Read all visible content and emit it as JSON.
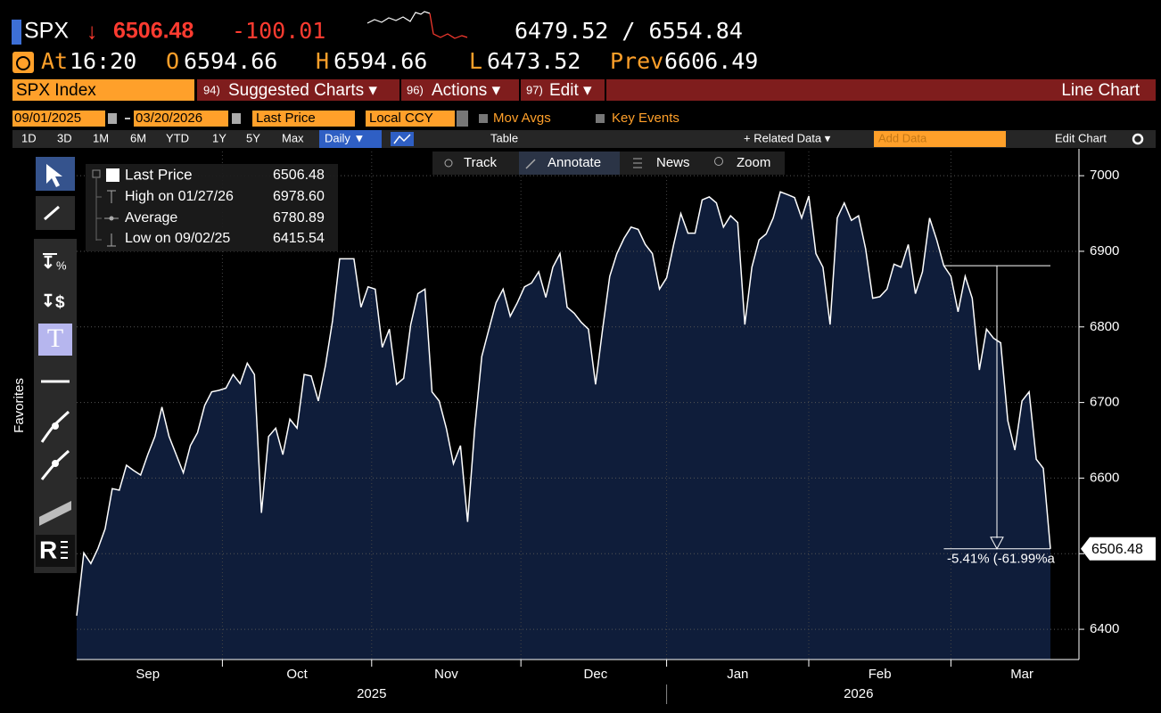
{
  "header": {
    "ticker": "SPX",
    "direction": "↓",
    "last": "6506.48",
    "change": "-100.01",
    "range": "6479.52 / 6554.84",
    "at_label": "At",
    "time": "16:20",
    "open_label": "O",
    "open": "6594.66",
    "high_label": "H",
    "high": "6594.66",
    "low_label": "L",
    "low": "6473.52",
    "prev_label": "Prev",
    "prev": "6606.49"
  },
  "menu": {
    "security": "SPX Index",
    "items": [
      {
        "number": "94)",
        "label": "Suggested Charts ▾"
      },
      {
        "number": "96)",
        "label": "Actions ▾"
      },
      {
        "number": "97)",
        "label": "Edit ▾"
      }
    ],
    "chart_type": "Line Chart"
  },
  "settings": {
    "start_date": "09/01/2025",
    "end_date": "03/20/2026",
    "field": "Last Price",
    "currency": "Local CCY",
    "mov_avgs": "Mov Avgs",
    "key_events": "Key Events"
  },
  "periods": [
    "1D",
    "3D",
    "1M",
    "6M",
    "YTD",
    "1Y",
    "5Y",
    "Max"
  ],
  "frequency": "Daily ▼",
  "table": "Table",
  "related": "+ Related Data ▾",
  "add_data": "Add Data",
  "edit_chart": "Edit Chart",
  "tools": [
    "Track",
    "Annotate",
    "News",
    "Zoom"
  ],
  "sidebar": {
    "favorites": "Favorites",
    "icons": [
      "%",
      "$",
      "T",
      "R"
    ]
  },
  "legend": [
    {
      "label": "Last Price",
      "value": "6506.48"
    },
    {
      "label": "High on 01/27/26",
      "value": "6978.60"
    },
    {
      "label": "Average",
      "value": "6780.89"
    },
    {
      "label": "Low on 09/02/25",
      "value": "6415.54"
    }
  ],
  "chart_data": {
    "type": "area",
    "series": [
      {
        "name": "Last Price",
        "color": "#ffffff",
        "area_color": "#0f1d3a",
        "values": [
          6418,
          6501,
          6487,
          6507,
          6533,
          6586,
          6584,
          6617,
          6610,
          6604,
          6631,
          6655,
          6694,
          6655,
          6631,
          6607,
          6643,
          6660,
          6696,
          6714,
          6716,
          6719,
          6737,
          6725,
          6752,
          6737,
          6554,
          6655,
          6666,
          6631,
          6678,
          6666,
          6737,
          6735,
          6702,
          6749,
          6808,
          6890,
          6890,
          6890,
          6826,
          6853,
          6850,
          6773,
          6797,
          6724,
          6732,
          6803,
          6844,
          6850,
          6714,
          6702,
          6666,
          6619,
          6643,
          6542,
          6666,
          6761,
          6797,
          6832,
          6850,
          6814,
          6832,
          6853,
          6858,
          6873,
          6839,
          6879,
          6897,
          6826,
          6818,
          6806,
          6797,
          6724,
          6797,
          6867,
          6897,
          6917,
          6932,
          6929,
          6909,
          6897,
          6850,
          6865,
          6909,
          6950,
          6924,
          6924,
          6968,
          6972,
          6964,
          6932,
          6947,
          6938,
          6803,
          6879,
          6915,
          6923,
          6944,
          6978.6,
          6975,
          6971,
          6944,
          6973,
          6897,
          6879,
          6803,
          6944,
          6964,
          6941,
          6947,
          6903,
          6838,
          6840,
          6850,
          6883,
          6879,
          6909,
          6844,
          6873,
          6944,
          6915,
          6881,
          6867,
          6820,
          6867,
          6838,
          6743,
          6797,
          6785,
          6779,
          6676,
          6637,
          6702,
          6714,
          6625,
          6613,
          6506.48
        ]
      }
    ],
    "categories": [
      null,
      null,
      null,
      null,
      null,
      null,
      null,
      null,
      null,
      null,
      "Sep",
      null,
      null,
      null,
      null,
      null,
      null,
      null,
      null,
      null,
      null,
      null,
      null,
      null,
      null,
      null,
      null,
      null,
      null,
      null,
      null,
      "Oct",
      null,
      null,
      null,
      null,
      null,
      null,
      null,
      null,
      null,
      null,
      null,
      null,
      null,
      null,
      null,
      null,
      null,
      null,
      null,
      null,
      "Nov",
      null,
      null,
      null,
      null,
      null,
      null,
      null,
      null,
      null,
      null,
      null,
      null,
      null,
      null,
      null,
      null,
      null,
      null,
      null,
      null,
      "Dec",
      null,
      null,
      null,
      null,
      null,
      null,
      null,
      null,
      null,
      null,
      null,
      null,
      null,
      null,
      null,
      null,
      null,
      null,
      null,
      "Jan",
      null,
      null,
      null,
      null,
      null,
      null,
      null,
      null,
      null,
      null,
      null,
      null,
      null,
      null,
      null,
      null,
      null,
      null,
      null,
      "Feb",
      null,
      null,
      null,
      null,
      null,
      null,
      null,
      null,
      null,
      null,
      null,
      null,
      null,
      null,
      null,
      null,
      null,
      null,
      null,
      "Mar",
      null,
      null,
      null,
      null
    ],
    "x_groups": [
      "2025",
      "2026"
    ],
    "ylim": [
      6360,
      7032
    ],
    "yticks": [
      6400,
      6500,
      6600,
      6700,
      6800,
      6900,
      7000
    ],
    "grid": true,
    "annotation": "-5.41% (-61.99%a",
    "price_tag": "6506.48"
  }
}
